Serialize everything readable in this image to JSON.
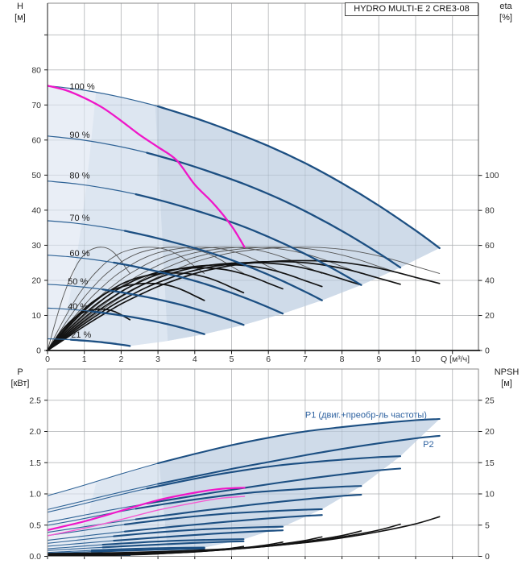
{
  "title_box": "HYDRO MULTI-E 2 CRE3-08",
  "axis_corner_labels": {
    "h": "H",
    "h_unit": "[м]",
    "eta": "eta",
    "eta_unit": "[%]",
    "p": "P",
    "p_unit": "[кВт]",
    "npsh": "NPSH",
    "npsh_unit": "[м]"
  },
  "colors": {
    "blue": "#2f6396",
    "blue_dark": "#1c4f82",
    "magenta": "#ef16c8",
    "magenta_light": "#f55ad2",
    "eta_thin": "#555555",
    "eta_thick": "#131313",
    "npsh": "#131313",
    "shade1": "#e9eef6",
    "shade2": "#dde6f1",
    "shade3": "#cfdbe9",
    "grid": "#d6d6d6",
    "grid_over": "rgba(90,100,115,0.16)",
    "frame": "#8a8a8a",
    "axis": "#1a1a1a",
    "tick_text": "#333333",
    "label_blue": "#2e62a0",
    "speed_label": "#1a1a1a"
  },
  "chart_data": [
    {
      "type": "line",
      "title": "HYDRO MULTI-E 2 CRE3-08",
      "xlabel": "Q [м³/ч]",
      "ylabel_left": "H [м]",
      "ylabel_right": "eta [%]",
      "xlim": [
        0,
        11.7
      ],
      "ylim_left": [
        0,
        99
      ],
      "ylim_right": [
        0,
        199
      ],
      "grid": true,
      "x_ticks": [
        {
          "v": 0,
          "l": "0"
        },
        {
          "v": 1,
          "l": "1"
        },
        {
          "v": 2,
          "l": "2"
        },
        {
          "v": 3,
          "l": "3"
        },
        {
          "v": 4,
          "l": "4"
        },
        {
          "v": 5,
          "l": "5"
        },
        {
          "v": 6,
          "l": "6"
        },
        {
          "v": 7,
          "l": "7"
        },
        {
          "v": 8,
          "l": "8"
        },
        {
          "v": 9,
          "l": "9"
        },
        {
          "v": 10,
          "l": "10"
        },
        {
          "v": 11,
          "l": ""
        }
      ],
      "y_ticks_left": [
        {
          "v": 0,
          "l": "0"
        },
        {
          "v": 10,
          "l": "10"
        },
        {
          "v": 20,
          "l": "20"
        },
        {
          "v": 30,
          "l": "30"
        },
        {
          "v": 40,
          "l": "40"
        },
        {
          "v": 50,
          "l": "50"
        },
        {
          "v": 60,
          "l": "60"
        },
        {
          "v": 70,
          "l": "70"
        },
        {
          "v": 80,
          "l": "80"
        },
        {
          "v": 90,
          "l": ""
        }
      ],
      "y_ticks_right": [
        {
          "v": 0,
          "l": "0"
        },
        {
          "v": 20,
          "l": "20"
        },
        {
          "v": 40,
          "l": "40"
        },
        {
          "v": 60,
          "l": "60"
        },
        {
          "v": 80,
          "l": "80"
        },
        {
          "v": 100,
          "l": "100"
        }
      ],
      "speeds": [
        1,
        0.9,
        0.8,
        0.7,
        0.6,
        0.5,
        0.4,
        0.21
      ],
      "thick_from": 2.82,
      "pump_curve_100": [
        [
          0,
          75.5
        ],
        [
          1,
          74.2
        ],
        [
          2,
          72.2
        ],
        [
          3,
          69.6
        ],
        [
          4,
          66.3
        ],
        [
          5,
          62.5
        ],
        [
          6,
          58.3
        ],
        [
          7,
          53.4
        ],
        [
          8,
          47.7
        ],
        [
          9,
          41.3
        ],
        [
          10,
          34.2
        ],
        [
          10.65,
          29.2
        ]
      ],
      "duty_curve": [
        [
          0,
          75.5
        ],
        [
          0.5,
          74.2
        ],
        [
          1,
          72.0
        ],
        [
          1.5,
          69.2
        ],
        [
          2,
          65.5
        ],
        [
          2.5,
          61.5
        ],
        [
          3,
          58.0
        ],
        [
          3.5,
          54.3
        ],
        [
          4,
          47.3
        ],
        [
          4.5,
          42.0
        ],
        [
          5,
          35.5
        ],
        [
          5.35,
          29.5
        ]
      ],
      "eta_curve_100": [
        [
          0,
          0
        ],
        [
          0.5,
          8
        ],
        [
          1,
          16
        ],
        [
          1.5,
          23.5
        ],
        [
          2,
          30.5
        ],
        [
          2.5,
          36.5
        ],
        [
          3,
          42
        ],
        [
          3.5,
          46.5
        ],
        [
          4,
          50.5
        ],
        [
          4.5,
          53.5
        ],
        [
          5,
          55.8
        ],
        [
          5.5,
          57.3
        ],
        [
          6,
          58.3
        ],
        [
          6.5,
          58.9
        ],
        [
          7,
          59
        ],
        [
          7.5,
          58.7
        ],
        [
          8,
          57.8
        ],
        [
          8.5,
          56.2
        ],
        [
          9,
          54
        ],
        [
          9.5,
          51.2
        ],
        [
          10,
          48
        ],
        [
          10.65,
          44
        ]
      ],
      "eta_overall_mult": [
        0.87,
        0.86,
        0.85,
        0.83,
        0.8,
        0.75,
        0.65,
        0.4
      ],
      "speed_labels": [
        {
          "label": "100 %",
          "q": 0.6,
          "h": 74.4
        },
        {
          "label": "90 %",
          "q": 0.6,
          "h": 60.7
        },
        {
          "label": "80 %",
          "q": 0.6,
          "h": 49.0
        },
        {
          "label": "70 %",
          "q": 0.6,
          "h": 37.0
        },
        {
          "label": "60 %",
          "q": 0.6,
          "h": 26.9
        },
        {
          "label": "50 %",
          "q": 0.55,
          "h": 18.8
        },
        {
          "label": "40 %",
          "q": 0.55,
          "h": 11.7
        },
        {
          "label": "21 %",
          "q": 0.64,
          "h": 3.7
        }
      ],
      "envelope": {
        "locus_speeds": [
          0.9,
          0.8,
          0.7,
          0.6,
          0.5,
          0.4,
          0.3,
          0.21
        ],
        "min_speed": 0.21,
        "boundary1_q_at_full": 1.32,
        "boundary1_h_at_full": 74.0,
        "boundary2_line": [
          [
            2.78,
            99
          ],
          [
            3.28,
            0
          ]
        ]
      }
    },
    {
      "type": "line",
      "title": "",
      "xlabel": "",
      "ylabel_left": "P [кВт]",
      "ylabel_right": "NPSH [м]",
      "xlim": [
        0,
        11.7
      ],
      "ylim_left": [
        0,
        3.0
      ],
      "ylim_right": [
        0,
        30
      ],
      "grid": true,
      "x_ticks": [
        {
          "v": 0,
          "l": ""
        },
        {
          "v": 1,
          "l": ""
        },
        {
          "v": 2,
          "l": ""
        },
        {
          "v": 3,
          "l": ""
        },
        {
          "v": 4,
          "l": ""
        },
        {
          "v": 5,
          "l": ""
        },
        {
          "v": 6,
          "l": ""
        },
        {
          "v": 7,
          "l": ""
        },
        {
          "v": 8,
          "l": ""
        },
        {
          "v": 9,
          "l": ""
        },
        {
          "v": 10,
          "l": ""
        },
        {
          "v": 11,
          "l": ""
        }
      ],
      "y_ticks_left": [
        {
          "v": 0,
          "l": "0.0"
        },
        {
          "v": 0.5,
          "l": "0.5"
        },
        {
          "v": 1.0,
          "l": "1.0"
        },
        {
          "v": 1.5,
          "l": "1.5"
        },
        {
          "v": 2.0,
          "l": "2.0"
        },
        {
          "v": 2.5,
          "l": "2.5"
        }
      ],
      "y_ticks_right": [
        {
          "v": 0,
          "l": "0"
        },
        {
          "v": 5,
          "l": "5"
        },
        {
          "v": 10,
          "l": "10"
        },
        {
          "v": 15,
          "l": "15"
        },
        {
          "v": 20,
          "l": "20"
        },
        {
          "v": 25,
          "l": "25"
        }
      ],
      "speeds": [
        1,
        0.9,
        0.8,
        0.7,
        0.6,
        0.5,
        0.4,
        0.21
      ],
      "thick_from": 2.82,
      "p1_curve_100": [
        [
          0,
          0.97
        ],
        [
          1,
          1.14
        ],
        [
          2,
          1.32
        ],
        [
          3,
          1.49
        ],
        [
          4,
          1.64
        ],
        [
          5,
          1.78
        ],
        [
          6,
          1.9
        ],
        [
          7,
          2.0
        ],
        [
          8,
          2.07
        ],
        [
          9,
          2.13
        ],
        [
          10,
          2.18
        ],
        [
          10.65,
          2.2
        ]
      ],
      "p2_curve_100": [
        [
          0,
          0.75
        ],
        [
          1,
          0.89
        ],
        [
          2,
          1.03
        ],
        [
          3,
          1.16
        ],
        [
          4,
          1.28
        ],
        [
          5,
          1.4
        ],
        [
          6,
          1.51
        ],
        [
          7,
          1.62
        ],
        [
          8,
          1.72
        ],
        [
          9,
          1.81
        ],
        [
          10,
          1.89
        ],
        [
          10.65,
          1.93
        ]
      ],
      "npsh_curve_100": [
        [
          0,
          0.45
        ],
        [
          1,
          0.5
        ],
        [
          2,
          0.6
        ],
        [
          3,
          0.75
        ],
        [
          4,
          0.95
        ],
        [
          5,
          1.25
        ],
        [
          6,
          1.65
        ],
        [
          7,
          2.2
        ],
        [
          8,
          2.95
        ],
        [
          9,
          3.95
        ],
        [
          10,
          5.2
        ],
        [
          10.65,
          6.35
        ]
      ],
      "npsh_speeds": [
        1,
        0.9,
        0.8,
        0.7,
        0.6,
        0.5,
        0.4
      ],
      "duty_p1": [
        [
          0,
          0.42
        ],
        [
          1,
          0.56
        ],
        [
          2,
          0.73
        ],
        [
          3,
          0.9
        ],
        [
          4,
          1.02
        ],
        [
          4.7,
          1.08
        ],
        [
          5.35,
          1.1
        ]
      ],
      "duty_p2": [
        [
          0,
          0.33
        ],
        [
          1,
          0.45
        ],
        [
          2,
          0.59
        ],
        [
          3,
          0.74
        ],
        [
          4,
          0.86
        ],
        [
          4.7,
          0.93
        ],
        [
          5.35,
          0.96
        ]
      ],
      "curve_labels": [
        {
          "label": "P1 (двиг.+преобр-ль частоты)",
          "q": 7.0,
          "p": 2.22
        },
        {
          "label": "P2",
          "q": 10.2,
          "p": 1.75
        }
      ],
      "envelope": {
        "locus_speeds": [
          0.9,
          0.8,
          0.7,
          0.6,
          0.5,
          0.4,
          0.3,
          0.21
        ],
        "min_speed": 0.21,
        "boundary1_q_at_full": 1.32,
        "boundary1_p_at_full": 1.18,
        "boundary2_line": [
          [
            2.78,
            3.0
          ],
          [
            3.28,
            0
          ]
        ]
      }
    }
  ]
}
